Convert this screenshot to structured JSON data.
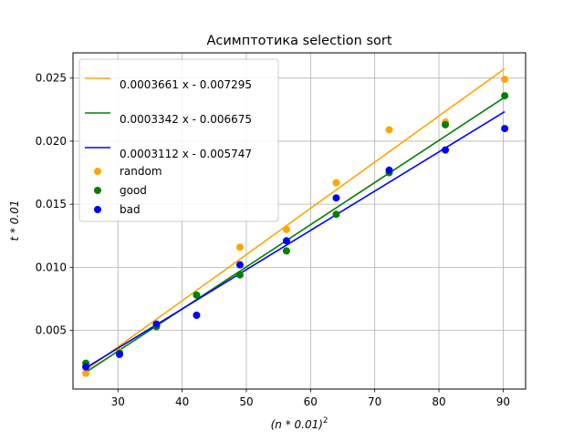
{
  "chart_data": {
    "type": "scatter",
    "title": "Асимптотика selection sort",
    "xlabel_base": "(n * 0.01)",
    "xlabel_sup": "2",
    "ylabel": "t * 0.01",
    "xlim": [
      23.0,
      93.5
    ],
    "ylim": [
      0.00035,
      0.027
    ],
    "x_ticks": [
      30,
      40,
      50,
      60,
      70,
      80,
      90
    ],
    "x_tick_labels": [
      "30",
      "40",
      "50",
      "60",
      "70",
      "80",
      "90"
    ],
    "y_ticks": [
      0.005,
      0.01,
      0.015,
      0.02,
      0.025
    ],
    "y_tick_labels": [
      "0.005",
      "0.010",
      "0.015",
      "0.020",
      "0.025"
    ],
    "grid": true,
    "legend_position": "top-left",
    "x": [
      25,
      30.25,
      36,
      42.25,
      49,
      56.25,
      64,
      72.25,
      81,
      90.25
    ],
    "series": [
      {
        "name": "random",
        "color": "#ffa500",
        "values": [
          0.0016,
          0.0033,
          0.0055,
          0.0078,
          0.0116,
          0.013,
          0.0167,
          0.0209,
          0.0215,
          0.0249
        ]
      },
      {
        "name": "good",
        "color": "#008000",
        "values": [
          0.0024,
          0.0032,
          0.0053,
          0.0078,
          0.0094,
          0.0113,
          0.0142,
          0.0175,
          0.0213,
          0.0236
        ]
      },
      {
        "name": "bad",
        "color": "#0000ff",
        "values": [
          0.0021,
          0.0031,
          0.0055,
          0.0062,
          0.0102,
          0.0121,
          0.0155,
          0.0177,
          0.0193,
          0.021
        ]
      }
    ],
    "fit_lines": [
      {
        "label": "0.0003661 x - 0.007295",
        "slope": 0.0003661,
        "intercept": -0.007295,
        "color": "#ffa500"
      },
      {
        "label": "0.0003342 x - 0.006675",
        "slope": 0.0003342,
        "intercept": -0.006675,
        "color": "#008000"
      },
      {
        "label": "0.0003112 x - 0.005747",
        "slope": 0.0003112,
        "intercept": -0.005747,
        "color": "#0000ff"
      }
    ]
  }
}
